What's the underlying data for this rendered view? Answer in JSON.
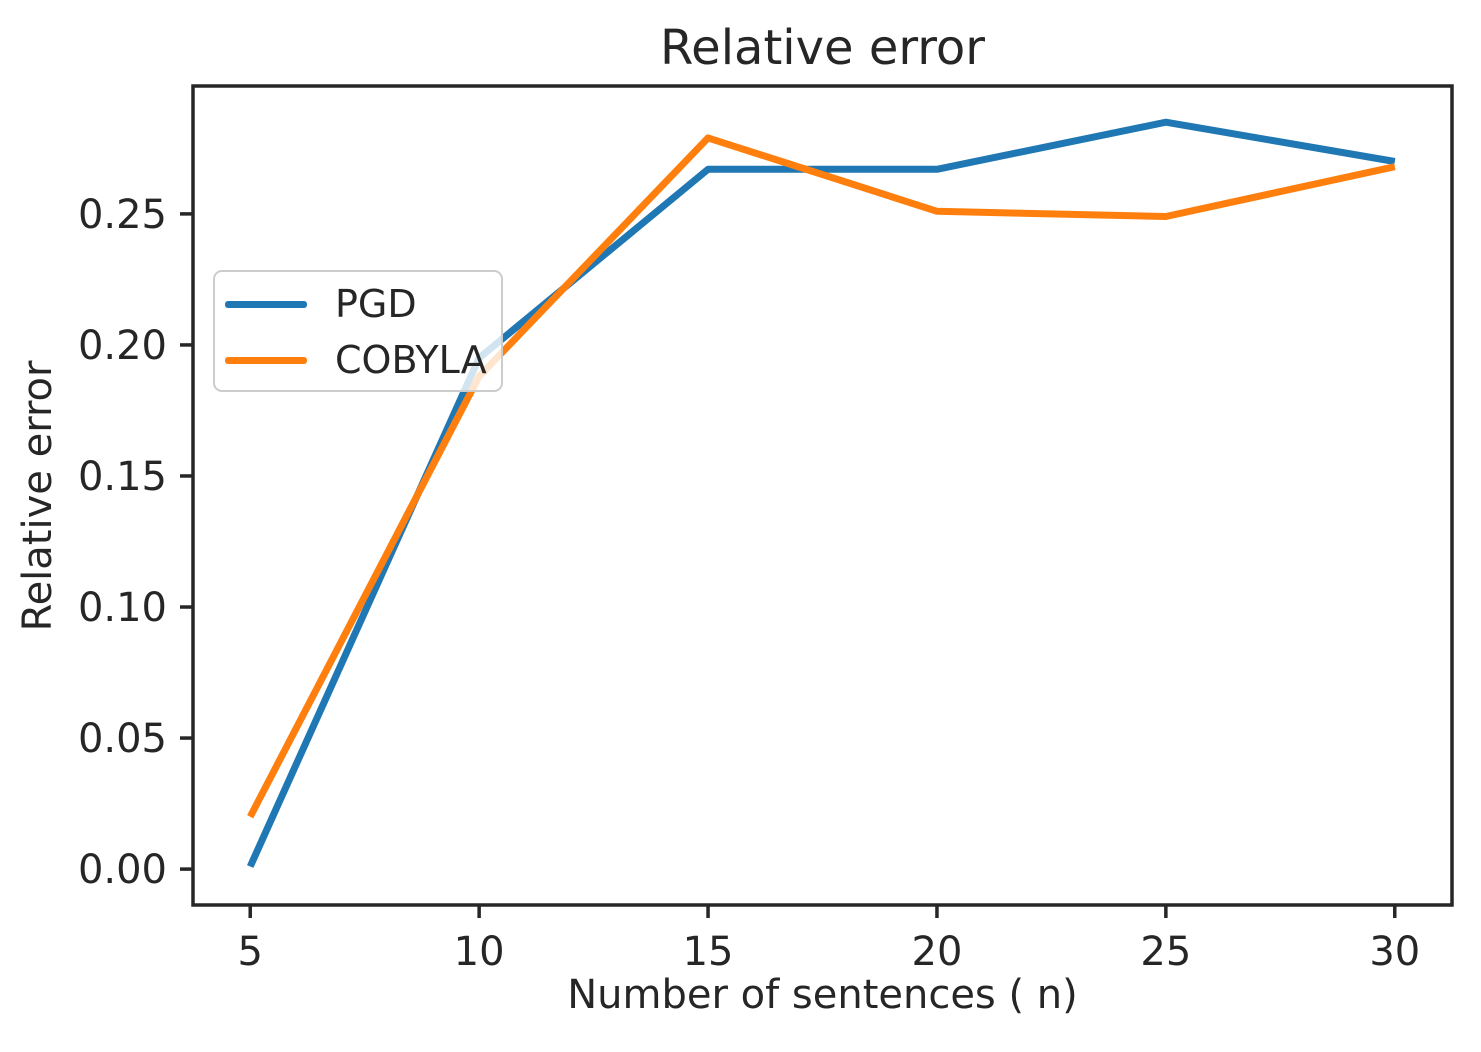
{
  "figure": {
    "background": "#ffffff",
    "text_color": "#262626"
  },
  "chart_data": {
    "type": "line",
    "title": "Relative error",
    "xlabel": "Number of sentences ( n)",
    "ylabel": "Relative error",
    "x": [
      5,
      10,
      15,
      20,
      25,
      30
    ],
    "series": [
      {
        "name": "PGD",
        "color": "#1f77b4",
        "values": [
          0.001,
          0.195,
          0.267,
          0.267,
          0.285,
          0.27
        ]
      },
      {
        "name": "COBYLA",
        "color": "#ff7f0e",
        "values": [
          0.02,
          0.188,
          0.279,
          0.251,
          0.249,
          0.268
        ]
      }
    ],
    "x_ticks": [
      5,
      10,
      15,
      20,
      25,
      30
    ],
    "y_ticks": [
      0.0,
      0.05,
      0.1,
      0.15,
      0.2,
      0.25
    ],
    "xlim": [
      3.75,
      31.25
    ],
    "ylim": [
      -0.0137,
      0.2988
    ],
    "grid": false,
    "legend": {
      "position": "upper left",
      "entries": [
        "PGD",
        "COBYLA"
      ]
    },
    "axis_color": "#262626",
    "markers": "none"
  }
}
